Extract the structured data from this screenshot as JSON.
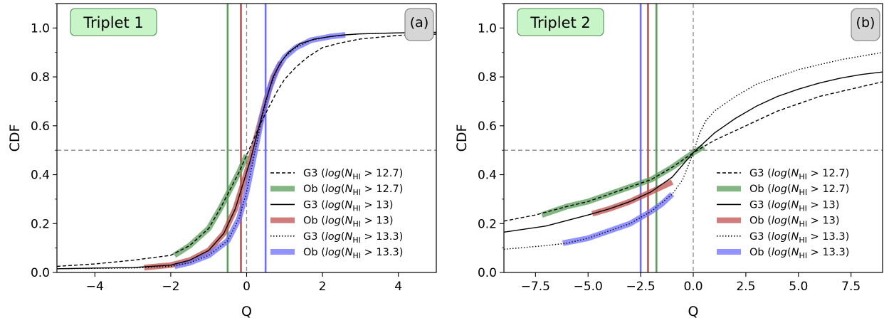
{
  "chart_data": [
    {
      "panel": "(a)",
      "tag": "Triplet 1",
      "type": "line",
      "xlabel": "Q",
      "ylabel": "CDF",
      "xlim": [
        -5,
        5
      ],
      "ylim": [
        0,
        1.1
      ],
      "xticks": [
        -4,
        -2,
        0,
        2,
        4
      ],
      "xtick_labels": [
        "−4",
        "−2",
        "0",
        "2",
        "4"
      ],
      "yticks": [
        0.0,
        0.2,
        0.4,
        0.6,
        0.8,
        1.0
      ],
      "ytick_labels": [
        "0.0",
        "0.2",
        "0.4",
        "0.6",
        "0.8",
        "1.0"
      ],
      "legend_position": "lower-right",
      "reference_lines": {
        "horizontal_y": 0.5,
        "vertical_x": 0
      },
      "vertical_lines": [
        {
          "x": -0.5,
          "color": "#5a9e5a"
        },
        {
          "x": -0.15,
          "color": "#c0504d"
        },
        {
          "x": 0.5,
          "color": "#6f6fff"
        }
      ],
      "series": [
        {
          "name": "G3 (log(N_HI > 12.7)",
          "style": "dashed",
          "color": "#000000",
          "x": [
            -5,
            -4,
            -3,
            -2,
            -1.5,
            -1,
            -0.7,
            -0.4,
            -0.2,
            0,
            0.2,
            0.4,
            0.6,
            0.8,
            1,
            1.3,
            1.6,
            2,
            2.5,
            3,
            4,
            5
          ],
          "y": [
            0.025,
            0.035,
            0.05,
            0.07,
            0.11,
            0.18,
            0.26,
            0.35,
            0.41,
            0.48,
            0.55,
            0.62,
            0.68,
            0.74,
            0.79,
            0.84,
            0.88,
            0.92,
            0.94,
            0.955,
            0.97,
            0.975
          ]
        },
        {
          "name": "Ob (log(N_HI > 12.7)",
          "style": "thick",
          "color": "#5a9e5a",
          "x": [
            -1.9,
            -1.5,
            -1,
            -0.7,
            -0.4,
            -0.2,
            0
          ],
          "y": [
            0.07,
            0.11,
            0.18,
            0.26,
            0.35,
            0.41,
            0.48
          ]
        },
        {
          "name": "G3 (log(N_HI > 13)",
          "style": "solid",
          "color": "#000000",
          "x": [
            -5,
            -4,
            -3,
            -2,
            -1.5,
            -1,
            -0.6,
            -0.3,
            -0.1,
            0.1,
            0.3,
            0.5,
            0.7,
            0.9,
            1.1,
            1.4,
            1.8,
            2.2,
            2.6,
            3,
            4,
            5
          ],
          "y": [
            0.015,
            0.018,
            0.02,
            0.03,
            0.05,
            0.09,
            0.16,
            0.26,
            0.36,
            0.46,
            0.58,
            0.7,
            0.8,
            0.86,
            0.9,
            0.935,
            0.955,
            0.965,
            0.972,
            0.976,
            0.98,
            0.982
          ]
        },
        {
          "name": "Ob (log(N_HI > 13)",
          "style": "thick",
          "color": "#c0504d",
          "x": [
            -2.7,
            -2,
            -1.5,
            -1,
            -0.6,
            -0.3,
            -0.1,
            0.1,
            0.3,
            0.5,
            0.7,
            0.9
          ],
          "y": [
            0.02,
            0.03,
            0.05,
            0.09,
            0.16,
            0.26,
            0.36,
            0.46,
            0.58,
            0.7,
            0.8,
            0.86
          ]
        },
        {
          "name": "G3 (log(N_HI > 13.3)",
          "style": "dotted",
          "color": "#000000",
          "x": [
            -5,
            -3,
            -2,
            -1.5,
            -1,
            -0.5,
            -0.2,
            0,
            0.2,
            0.4,
            0.6,
            0.8,
            1,
            1.3,
            1.7,
            2.2,
            2.6,
            3,
            4,
            5
          ],
          "y": [
            0.015,
            0.018,
            0.025,
            0.04,
            0.07,
            0.13,
            0.22,
            0.33,
            0.48,
            0.63,
            0.75,
            0.83,
            0.88,
            0.92,
            0.95,
            0.965,
            0.972,
            0.976,
            0.98,
            0.982
          ]
        },
        {
          "name": "Ob (log(N_HI > 13.3)",
          "style": "thick",
          "color": "#6f6fff",
          "x": [
            -1.9,
            -1.5,
            -1,
            -0.5,
            -0.2,
            0,
            0.2,
            0.4,
            0.6,
            0.8,
            1,
            1.3,
            1.7,
            2.2,
            2.6
          ],
          "y": [
            0.025,
            0.04,
            0.07,
            0.13,
            0.22,
            0.33,
            0.48,
            0.63,
            0.75,
            0.83,
            0.88,
            0.92,
            0.95,
            0.965,
            0.972
          ]
        }
      ]
    },
    {
      "panel": "(b)",
      "tag": "Triplet 2",
      "type": "line",
      "xlabel": "Q",
      "ylabel": "CDF",
      "xlim": [
        -9,
        9
      ],
      "ylim": [
        0,
        1.1
      ],
      "xticks": [
        -7.5,
        -5.0,
        -2.5,
        0.0,
        2.5,
        5.0,
        7.5
      ],
      "xtick_labels": [
        "−7.5",
        "−5.0",
        "−2.5",
        "0.0",
        "2.5",
        "5.0",
        "7.5"
      ],
      "yticks": [
        0.0,
        0.2,
        0.4,
        0.6,
        0.8,
        1.0
      ],
      "ytick_labels": [
        "0.0",
        "0.2",
        "0.4",
        "0.6",
        "0.8",
        "1.0"
      ],
      "legend_position": "lower-right",
      "reference_lines": {
        "horizontal_y": 0.5,
        "vertical_x": 0
      },
      "vertical_lines": [
        {
          "x": -1.75,
          "color": "#5a9e5a"
        },
        {
          "x": -2.15,
          "color": "#c0504d"
        },
        {
          "x": -2.5,
          "color": "#6f6fff"
        }
      ],
      "series": [
        {
          "name": "G3 (log(N_HI > 12.7)",
          "style": "dashed",
          "color": "#000000",
          "x": [
            -9,
            -7.5,
            -6,
            -5,
            -4,
            -3,
            -2,
            -1,
            0,
            0.5,
            1,
            2,
            3,
            4,
            5,
            6,
            7,
            8,
            9
          ],
          "y": [
            0.21,
            0.235,
            0.27,
            0.29,
            0.32,
            0.35,
            0.38,
            0.43,
            0.49,
            0.515,
            0.54,
            0.58,
            0.62,
            0.66,
            0.69,
            0.72,
            0.74,
            0.76,
            0.78
          ]
        },
        {
          "name": "Ob (log(N_HI > 12.7)",
          "style": "thick",
          "color": "#5a9e5a",
          "x": [
            -7.2,
            -6,
            -5,
            -4,
            -3,
            -2,
            -1,
            0,
            0.5
          ],
          "y": [
            0.235,
            0.27,
            0.29,
            0.32,
            0.35,
            0.38,
            0.43,
            0.49,
            0.515
          ]
        },
        {
          "name": "G3 (log(N_HI > 13)",
          "style": "solid",
          "color": "#000000",
          "x": [
            -9,
            -7,
            -5,
            -4,
            -3,
            -2,
            -1,
            0,
            0.5,
            1,
            2,
            3,
            4,
            5,
            6,
            7,
            8,
            9
          ],
          "y": [
            0.165,
            0.19,
            0.235,
            0.26,
            0.29,
            0.33,
            0.39,
            0.49,
            0.53,
            0.57,
            0.63,
            0.68,
            0.72,
            0.75,
            0.775,
            0.795,
            0.81,
            0.82
          ]
        },
        {
          "name": "Ob (log(N_HI > 13)",
          "style": "thick",
          "color": "#c0504d",
          "x": [
            -4.8,
            -4,
            -3,
            -2,
            -1.5,
            -1
          ],
          "y": [
            0.24,
            0.26,
            0.29,
            0.33,
            0.35,
            0.37
          ]
        },
        {
          "name": "G3 (log(N_HI > 13.3)",
          "style": "dotted",
          "color": "#000000",
          "x": [
            -9,
            -7,
            -6,
            -5,
            -4,
            -3,
            -2,
            -1,
            -0.5,
            0,
            0.3,
            0.6,
            1,
            2,
            3,
            4,
            5,
            6,
            7,
            8,
            9
          ],
          "y": [
            0.095,
            0.11,
            0.12,
            0.14,
            0.17,
            0.2,
            0.25,
            0.32,
            0.38,
            0.49,
            0.57,
            0.62,
            0.66,
            0.72,
            0.77,
            0.8,
            0.83,
            0.85,
            0.87,
            0.885,
            0.9
          ]
        },
        {
          "name": "Ob (log(N_HI > 13.3)",
          "style": "thick",
          "color": "#6f6fff",
          "x": [
            -6.2,
            -5,
            -4,
            -3,
            -2,
            -1.5,
            -1
          ],
          "y": [
            0.12,
            0.14,
            0.17,
            0.2,
            0.25,
            0.28,
            0.32
          ]
        }
      ]
    }
  ],
  "legend_entries": [
    {
      "src": "G3",
      "value": "12.7",
      "style": "dashed",
      "color": "#000000"
    },
    {
      "src": "Ob",
      "value": "12.7",
      "style": "thick",
      "color": "#5a9e5a"
    },
    {
      "src": "G3",
      "value": "13",
      "style": "solid",
      "color": "#000000"
    },
    {
      "src": "Ob",
      "value": "13",
      "style": "thick",
      "color": "#c0504d"
    },
    {
      "src": "G3",
      "value": "13.3",
      "style": "dotted",
      "color": "#000000"
    },
    {
      "src": "Ob",
      "value": "13.3",
      "style": "thick",
      "color": "#6f6fff"
    }
  ],
  "colors": {
    "tag_fill": "#c8f5c8",
    "tag_stroke": "#6b9e6b",
    "letter_fill": "#d6d6d6",
    "letter_stroke": "#888888",
    "refline": "#8a8a8a"
  }
}
